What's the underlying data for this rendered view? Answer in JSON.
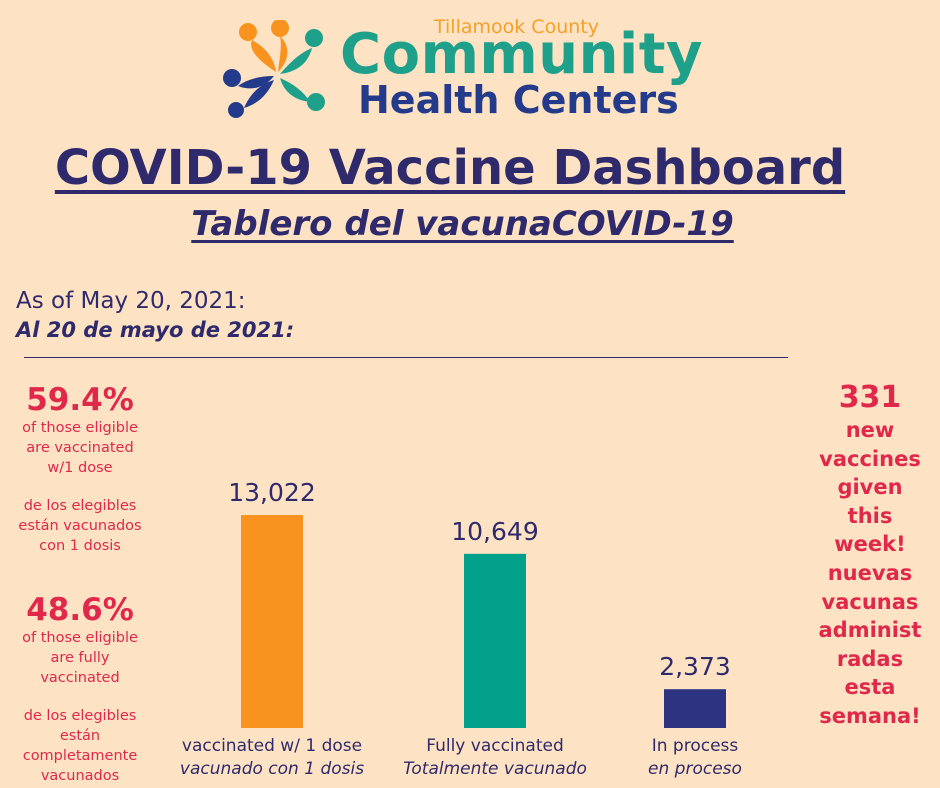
{
  "header": {
    "org_small": "Tillamook County",
    "org_big": "Community",
    "org_sub": "Health Centers",
    "title": "COVID-19 Vaccine Dashboard",
    "subtitle": "Tablero del vacunaCOVID-19",
    "as_of_en": "As of May 20, 2021:",
    "as_of_es": "Al 20 de mayo de 2021:"
  },
  "left_stats": [
    {
      "value": "59.4%",
      "text_en": [
        "of those eligible",
        "are  vaccinated",
        "w/1 dose"
      ],
      "text_es": [
        "de los elegibles",
        "están vacunados",
        "con 1 dosis"
      ]
    },
    {
      "value": "48.6%",
      "text_en": [
        "of those eligible",
        "are  fully",
        "vaccinated"
      ],
      "text_es": [
        "de los elegibles",
        "están",
        "completamente",
        "vacunados"
      ]
    }
  ],
  "right_stat": {
    "value": "331",
    "lines": [
      "new",
      "vaccines",
      "given",
      "this",
      "week!",
      "nuevas",
      "vacunas",
      "administ",
      "radas",
      "esta",
      "semana!"
    ]
  },
  "colors": {
    "background": "#fde3c4",
    "text": "#2f2a6b",
    "highlight": "#e0284a",
    "bar_1": "#f7931e",
    "bar_2": "#00a08a",
    "bar_3": "#2e3381"
  },
  "chart_data": {
    "type": "bar",
    "categories": [
      "vaccinated w/ 1 dose",
      "Fully vaccinated",
      "In process"
    ],
    "categories_es": [
      "vacunado con 1 dosis",
      "Totalmente vacunado",
      "en proceso"
    ],
    "values": [
      13022,
      10649,
      2373
    ],
    "value_labels": [
      "13,022",
      "10,649",
      "2,373"
    ],
    "bar_colors": [
      "#f7931e",
      "#00a08a",
      "#2e3381"
    ],
    "ylim": [
      0,
      13022
    ],
    "grid": false
  }
}
